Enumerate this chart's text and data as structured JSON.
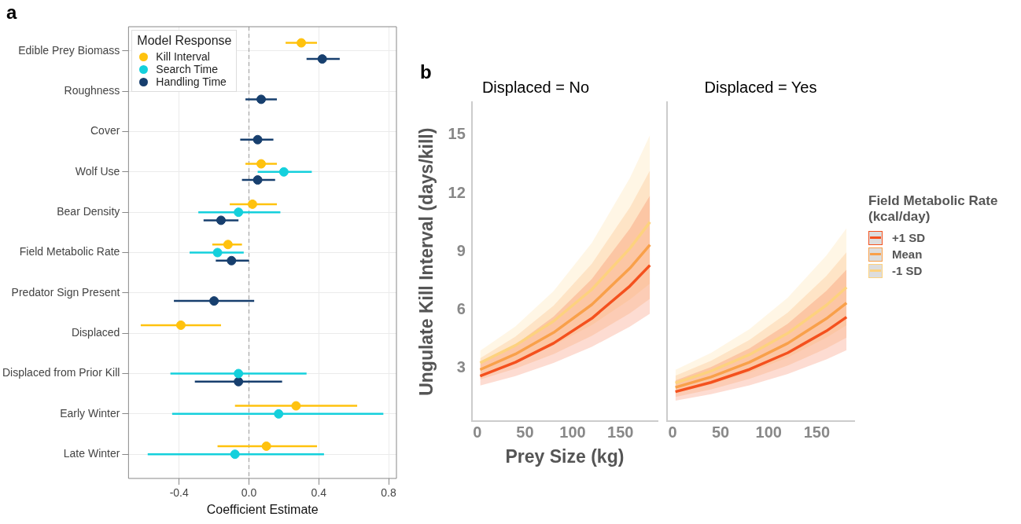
{
  "chart_data": [
    {
      "type": "scatter",
      "orientation": "horizontal",
      "xlabel": "Coefficient Estimate",
      "legend_title": "Model Response",
      "legend": "top left",
      "annotations": [
        "a"
      ],
      "grid": true,
      "marker": "circle",
      "categories": [
        "Edible Prey Biomass",
        "Roughness",
        "Cover",
        "Wolf Use",
        "Bear Density",
        "Field Metabolic Rate",
        "Predator Sign Present",
        "Displaced",
        "Displaced from Prior Kill",
        "Early Winter",
        "Late Winter"
      ],
      "series": [
        {
          "name": "Kill Interval",
          "color": "#ffc20e",
          "values": [
            0.3,
            null,
            null,
            0.07,
            0.02,
            -0.12,
            null,
            -0.39,
            null,
            0.27,
            0.1
          ],
          "errors": [
            [
              0.21,
              0.39
            ],
            null,
            null,
            [
              -0.02,
              0.16
            ],
            [
              -0.11,
              0.16
            ],
            [
              -0.21,
              -0.04
            ],
            null,
            [
              -0.62,
              -0.16
            ],
            null,
            [
              -0.08,
              0.62
            ],
            [
              -0.18,
              0.39
            ]
          ]
        },
        {
          "name": "Search Time",
          "color": "#14d0dc",
          "values": [
            null,
            null,
            null,
            0.2,
            -0.06,
            -0.18,
            null,
            null,
            -0.06,
            0.17,
            -0.08
          ],
          "errors": [
            null,
            null,
            null,
            [
              0.05,
              0.36
            ],
            [
              -0.29,
              0.18
            ],
            [
              -0.34,
              -0.03
            ],
            null,
            null,
            [
              -0.45,
              0.33
            ],
            [
              -0.44,
              0.77
            ],
            [
              -0.58,
              0.43
            ]
          ]
        },
        {
          "name": "Handling Time",
          "color": "#173f6e",
          "values": [
            0.42,
            0.07,
            0.05,
            0.05,
            -0.16,
            -0.1,
            -0.2,
            null,
            -0.06,
            null,
            null
          ],
          "errors": [
            [
              0.33,
              0.52
            ],
            [
              -0.02,
              0.16
            ],
            [
              -0.05,
              0.14
            ],
            [
              -0.04,
              0.15
            ],
            [
              -0.26,
              -0.06
            ],
            [
              -0.19,
              0.0
            ],
            [
              -0.43,
              0.03
            ],
            null,
            [
              -0.31,
              0.19
            ],
            null,
            null
          ]
        }
      ],
      "xlim": [
        -0.69,
        0.845
      ],
      "xticks": [
        -0.4,
        {
          "value": 0,
          "label": "0.0"
        },
        0.4,
        0.8
      ],
      "ref_lines": [
        {
          "axis": "x",
          "value": 0,
          "color": "#999999",
          "line_style": "dashed"
        }
      ]
    },
    {
      "type": "line",
      "title": "Displaced = No",
      "ylabel": "Ungulate Kill Interval (days/kill)",
      "xlabel": "Prey Size (kg)",
      "annotations": [
        "b"
      ],
      "x": [
        3,
        40,
        80,
        120,
        160,
        181
      ],
      "series": [
        {
          "color": "#f4511e",
          "values": [
            2.58,
            3.29,
            4.27,
            5.55,
            7.22,
            8.29
          ],
          "lower": [
            2.09,
            2.58,
            3.25,
            4.08,
            5.13,
            5.79
          ],
          "upper": [
            3.2,
            4.2,
            5.64,
            7.58,
            10.18,
            11.88
          ]
        },
        {
          "color": "#f9a04a",
          "values": [
            2.91,
            3.71,
            4.82,
            6.26,
            8.14,
            9.34
          ],
          "lower": [
            2.4,
            2.96,
            3.71,
            4.65,
            5.82,
            6.56
          ],
          "upper": [
            3.5,
            4.61,
            6.21,
            8.37,
            11.27,
            13.18
          ]
        },
        {
          "color": "#fdd27e",
          "values": [
            3.26,
            4.16,
            5.41,
            7.04,
            9.16,
            10.52
          ],
          "lower": [
            2.7,
            3.32,
            4.16,
            5.21,
            6.52,
            7.34
          ],
          "upper": [
            3.88,
            5.14,
            6.96,
            9.44,
            12.79,
            15.0
          ]
        }
      ],
      "xlim": [
        -5.7,
        189
      ],
      "ylim": [
        0.24,
        16.7
      ],
      "xticks": [
        0,
        50,
        100,
        150
      ],
      "yticks": [
        3,
        6,
        9,
        12,
        15
      ]
    },
    {
      "type": "line",
      "title": "Displaced = Yes",
      "legend": "right",
      "legend_title": "Field Metabolic Rate (kcal/day)",
      "tick_labels": "x",
      "x": [
        3,
        40,
        80,
        120,
        160,
        181
      ],
      "series": [
        {
          "name": "+1 SD",
          "color": "#f4511e",
          "values": [
            1.77,
            2.25,
            2.92,
            3.78,
            4.9,
            5.62
          ],
          "lower": [
            1.31,
            1.64,
            2.1,
            2.69,
            3.44,
            3.91
          ],
          "upper": [
            2.35,
            3.04,
            4.0,
            5.28,
            6.97,
            8.06
          ]
        },
        {
          "name": "Mean",
          "color": "#f9a04a",
          "values": [
            1.99,
            2.53,
            3.29,
            4.27,
            5.54,
            6.35
          ],
          "lower": [
            1.5,
            1.89,
            2.43,
            3.12,
            4.0,
            4.56
          ],
          "upper": [
            2.6,
            3.36,
            4.44,
            5.86,
            7.74,
            8.96
          ]
        },
        {
          "name": "-1 SD",
          "color": "#fdd27e",
          "values": [
            2.22,
            2.83,
            3.68,
            4.79,
            6.23,
            7.15
          ],
          "lower": [
            1.7,
            2.15,
            2.76,
            3.54,
            4.56,
            5.2
          ],
          "upper": [
            2.9,
            3.77,
            5.0,
            6.63,
            8.79,
            10.2
          ]
        }
      ],
      "xlim": [
        -5.7,
        189
      ],
      "ylim": [
        0.24,
        16.7
      ],
      "xticks": [
        0,
        50,
        100,
        150
      ],
      "yticks": [
        3,
        6,
        9,
        12,
        15
      ]
    }
  ]
}
